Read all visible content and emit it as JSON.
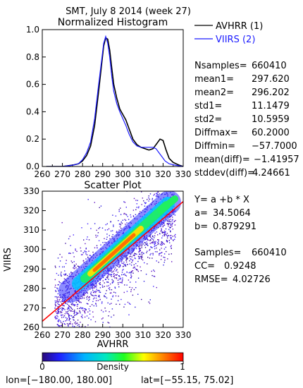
{
  "header": "SMT,  July 8 2014 (week 27)",
  "chart_data": [
    {
      "type": "line",
      "title": "Normalized Histogram",
      "xlim": [
        260,
        330
      ],
      "ylim": [
        0,
        1.0
      ],
      "x_ticks": [
        "260",
        "270",
        "280",
        "290",
        "300",
        "310",
        "320",
        "330"
      ],
      "y_ticks": [
        "0.0",
        "0.2",
        "0.4",
        "0.6",
        "0.8",
        "1.0"
      ],
      "series": [
        {
          "name": "AVHRR (1)",
          "color": "#000000",
          "points": [
            [
              262,
              0.0
            ],
            [
              270,
              0.0
            ],
            [
              275,
              0.01
            ],
            [
              278,
              0.02
            ],
            [
              280,
              0.04
            ],
            [
              282,
              0.08
            ],
            [
              284,
              0.15
            ],
            [
              286,
              0.3
            ],
            [
              288,
              0.55
            ],
            [
              289.5,
              0.75
            ],
            [
              290.5,
              0.88
            ],
            [
              291.5,
              0.94
            ],
            [
              292.5,
              0.93
            ],
            [
              293.5,
              0.85
            ],
            [
              294.5,
              0.72
            ],
            [
              295.5,
              0.6
            ],
            [
              297,
              0.5
            ],
            [
              298.5,
              0.42
            ],
            [
              300,
              0.38
            ],
            [
              301.5,
              0.34
            ],
            [
              303,
              0.28
            ],
            [
              305,
              0.2
            ],
            [
              307,
              0.16
            ],
            [
              309,
              0.14
            ],
            [
              311,
              0.13
            ],
            [
              313,
              0.12
            ],
            [
              315,
              0.13
            ],
            [
              317,
              0.17
            ],
            [
              318.5,
              0.2
            ],
            [
              320,
              0.19
            ],
            [
              321.5,
              0.12
            ],
            [
              323,
              0.06
            ],
            [
              325,
              0.03
            ],
            [
              328,
              0.01
            ],
            [
              330,
              0.0
            ]
          ]
        },
        {
          "name": "VIIRS (2)",
          "color": "#1a1aff",
          "points": [
            [
              262,
              0.0
            ],
            [
              270,
              0.0
            ],
            [
              275,
              0.01
            ],
            [
              278,
              0.02
            ],
            [
              280,
              0.05
            ],
            [
              282,
              0.1
            ],
            [
              284,
              0.18
            ],
            [
              286,
              0.35
            ],
            [
              288,
              0.6
            ],
            [
              289.5,
              0.78
            ],
            [
              290.5,
              0.9
            ],
            [
              291.5,
              0.95
            ],
            [
              292.5,
              0.9
            ],
            [
              293.5,
              0.8
            ],
            [
              294.5,
              0.66
            ],
            [
              295.5,
              0.55
            ],
            [
              297,
              0.46
            ],
            [
              298.5,
              0.4
            ],
            [
              300,
              0.35
            ],
            [
              301.5,
              0.3
            ],
            [
              303,
              0.24
            ],
            [
              305,
              0.18
            ],
            [
              307,
              0.15
            ],
            [
              309,
              0.14
            ],
            [
              311,
              0.14
            ],
            [
              313,
              0.14
            ],
            [
              315,
              0.14
            ],
            [
              316.5,
              0.13
            ],
            [
              318,
              0.1
            ],
            [
              319.5,
              0.07
            ],
            [
              321,
              0.04
            ],
            [
              323,
              0.02
            ],
            [
              326,
              0.01
            ],
            [
              330,
              0.0
            ]
          ]
        }
      ]
    },
    {
      "type": "heatmap",
      "title": "Scatter Plot",
      "xlabel": "AVHRR",
      "ylabel": "VIIRS",
      "xlim": [
        260,
        330
      ],
      "ylim": [
        260,
        330
      ],
      "x_ticks": [
        "260",
        "270",
        "280",
        "290",
        "300",
        "310",
        "320",
        "330"
      ],
      "y_ticks": [
        "260",
        "270",
        "280",
        "290",
        "300",
        "310",
        "320",
        "330"
      ],
      "fit_line": {
        "a": 34.5064,
        "b": 0.879291,
        "color": "#ff0000"
      },
      "colorbar": {
        "label": "Density",
        "min_label": "0",
        "max_label": "1"
      }
    }
  ],
  "legend": [
    {
      "label": "AVHRR (1)",
      "color": "#000000"
    },
    {
      "label": "VIIRS (2)",
      "color": "#1a1aff"
    }
  ],
  "stats": [
    {
      "label": "Nsamples=",
      "value": "660410"
    },
    {
      "label": "mean1=",
      "value": "297.620"
    },
    {
      "label": "mean2=",
      "value": "296.202"
    },
    {
      "label": "std1=",
      "value": "11.1479"
    },
    {
      "label": "std2=",
      "value": "10.5959"
    },
    {
      "label": "Diffmax=",
      "value": "60.2000"
    },
    {
      "label": "Diffmin=",
      "value": "−57.7000"
    },
    {
      "label": "mean(diff)=",
      "value": "−1.41957"
    },
    {
      "label": "stddev(diff)=",
      "value": "4.24661"
    }
  ],
  "regression": {
    "equation": "Y= a +b * X",
    "a_label": "a=",
    "a_value": "34.5064",
    "b_label": "b=",
    "b_value": "0.879291",
    "samples_label": "Samples=",
    "samples_value": "660410",
    "cc_label": "CC=",
    "cc_value": "0.9248",
    "rmse_label": "RMSE=",
    "rmse_value": "4.02726"
  },
  "footer": {
    "lon_text": "lon=[−180.00, 180.00]",
    "lat_text": "lat=[−55.15, 75.02]"
  }
}
